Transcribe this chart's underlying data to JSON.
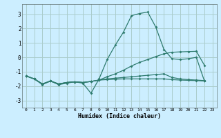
{
  "xlabel": "Humidex (Indice chaleur)",
  "xlim": [
    -0.5,
    23.5
  ],
  "ylim": [
    -3.5,
    3.7
  ],
  "yticks": [
    -3,
    -2,
    -1,
    0,
    1,
    2,
    3
  ],
  "xticks": [
    0,
    1,
    2,
    3,
    4,
    5,
    6,
    7,
    8,
    9,
    10,
    11,
    12,
    13,
    14,
    15,
    16,
    17,
    18,
    19,
    20,
    21,
    22,
    23
  ],
  "bg_color": "#cceeff",
  "grid_color": "#aacccc",
  "line_color": "#2e7b6e",
  "lines": [
    {
      "x": [
        0,
        1,
        2,
        3,
        4,
        5,
        6,
        7,
        8,
        9,
        10,
        11,
        12,
        13,
        14,
        15,
        16,
        17,
        18,
        19,
        20,
        21,
        22
      ],
      "y": [
        -1.3,
        -1.5,
        -1.9,
        -1.65,
        -1.9,
        -1.8,
        -1.7,
        -1.8,
        -2.5,
        -1.5,
        -0.15,
        0.85,
        1.75,
        2.9,
        3.05,
        3.15,
        2.1,
        0.55,
        -0.1,
        -0.15,
        -0.1,
        0.0,
        -1.65
      ]
    },
    {
      "x": [
        0,
        1,
        2,
        3,
        4,
        5,
        6,
        7,
        8,
        9,
        10,
        11,
        12,
        13,
        14,
        15,
        16,
        17,
        18,
        19,
        20,
        21,
        22
      ],
      "y": [
        -1.3,
        -1.5,
        -1.85,
        -1.65,
        -1.85,
        -1.75,
        -1.7,
        -1.75,
        -1.68,
        -1.58,
        -1.35,
        -1.15,
        -0.9,
        -0.6,
        -0.35,
        -0.15,
        0.05,
        0.25,
        0.35,
        0.38,
        0.4,
        0.42,
        -0.55
      ]
    },
    {
      "x": [
        0,
        1,
        2,
        3,
        4,
        5,
        6,
        7,
        8,
        9,
        10,
        11,
        12,
        13,
        14,
        15,
        16,
        17,
        18,
        19,
        20,
        21,
        22
      ],
      "y": [
        -1.3,
        -1.5,
        -1.85,
        -1.65,
        -1.85,
        -1.75,
        -1.7,
        -1.75,
        -1.68,
        -1.58,
        -1.5,
        -1.45,
        -1.4,
        -1.35,
        -1.3,
        -1.25,
        -1.2,
        -1.15,
        -1.4,
        -1.5,
        -1.55,
        -1.58,
        -1.62
      ]
    },
    {
      "x": [
        0,
        1,
        2,
        3,
        4,
        5,
        6,
        7,
        8,
        9,
        10,
        11,
        12,
        13,
        14,
        15,
        16,
        17,
        18,
        19,
        20,
        21,
        22
      ],
      "y": [
        -1.3,
        -1.5,
        -1.85,
        -1.65,
        -1.85,
        -1.75,
        -1.7,
        -1.75,
        -1.68,
        -1.58,
        -1.55,
        -1.52,
        -1.5,
        -1.5,
        -1.5,
        -1.5,
        -1.5,
        -1.5,
        -1.55,
        -1.58,
        -1.6,
        -1.62,
        -1.65
      ]
    }
  ]
}
